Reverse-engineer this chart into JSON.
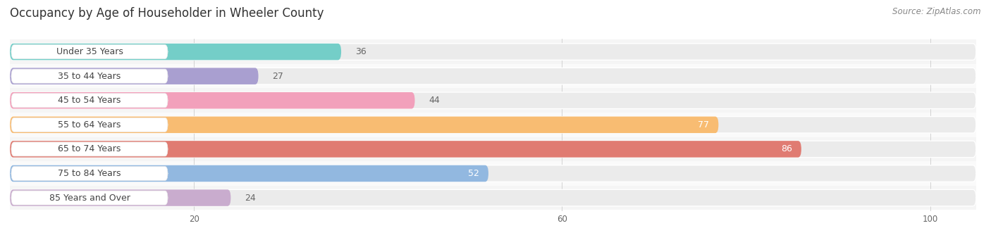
{
  "title": "Occupancy by Age of Householder in Wheeler County",
  "source": "Source: ZipAtlas.com",
  "categories": [
    "Under 35 Years",
    "35 to 44 Years",
    "45 to 54 Years",
    "55 to 64 Years",
    "65 to 74 Years",
    "75 to 84 Years",
    "85 Years and Over"
  ],
  "values": [
    36,
    27,
    44,
    77,
    86,
    52,
    24
  ],
  "bar_colors": [
    "#74CEC8",
    "#A99FD0",
    "#F2A0BB",
    "#F8BC72",
    "#E07B72",
    "#92B8E0",
    "#C9ACCE"
  ],
  "bar_bg_color": "#EBEBEB",
  "value_label_inside_color": "#FFFFFF",
  "value_label_outside_color": "#666666",
  "xlim": [
    0,
    105
  ],
  "xticks": [
    20,
    60,
    100
  ],
  "title_fontsize": 12,
  "source_fontsize": 8.5,
  "bar_label_fontsize": 9,
  "cat_label_fontsize": 9,
  "background_color": "#FFFFFF",
  "bar_height": 0.68,
  "row_bg_even": "#F5F5F5",
  "row_bg_odd": "#FAFAFA",
  "grid_color": "#CCCCCC",
  "inside_threshold": 50
}
